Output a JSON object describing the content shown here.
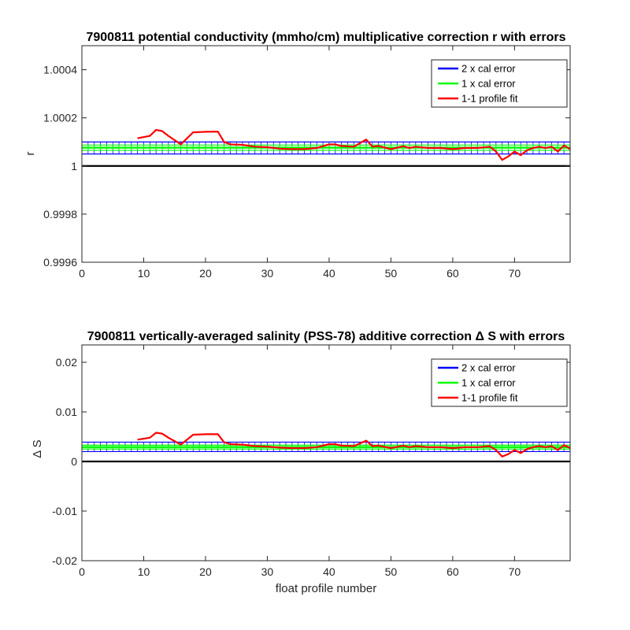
{
  "chart_data": [
    {
      "type": "line",
      "title": "7900811 potential conductivity (mmho/cm) multiplicative correction r with errors",
      "xlabel": "",
      "ylabel": "r",
      "xlim": [
        0,
        79
      ],
      "ylim": [
        0.9996,
        1.0005
      ],
      "xticks": [
        0,
        10,
        20,
        30,
        40,
        50,
        60,
        70
      ],
      "xtick_labels": [
        "0",
        "10",
        "20",
        "30",
        "40",
        "50",
        "60",
        "70"
      ],
      "yticks": [
        0.9996,
        0.9998,
        1,
        1.0002,
        1.0004
      ],
      "ytick_labels": [
        "0.9996",
        "0.9998",
        "1",
        "1.0002",
        "1.0004"
      ],
      "reference_line": 1,
      "legend_position": "top-right",
      "legend": [
        "2 x cal error",
        "1 x cal error",
        "1-1 profile fit"
      ],
      "bands": [
        {
          "name": "2 x cal error",
          "color": "#0000ff",
          "lower": 1.00005,
          "upper": 1.0001
        },
        {
          "name": "1 x cal error",
          "color": "#00ff00",
          "lower": 1.000065,
          "upper": 1.000087
        }
      ],
      "series": [
        {
          "name": "1-1 profile fit",
          "color": "#ff0000",
          "x": [
            9,
            11,
            12,
            13,
            14,
            16,
            18,
            20,
            22,
            23,
            24,
            26,
            28,
            30,
            32,
            34,
            36,
            38,
            40,
            41,
            42,
            44,
            46,
            47,
            48,
            50,
            52,
            53,
            54,
            56,
            58,
            60,
            62,
            64,
            66,
            67,
            68,
            69,
            70,
            71,
            72,
            73,
            74,
            75,
            76,
            77,
            78,
            79
          ],
          "y": [
            1.000115,
            1.000125,
            1.00015,
            1.000145,
            1.000125,
            1.00009,
            1.00014,
            1.000142,
            1.000143,
            1.0001,
            1.00009,
            1.000088,
            1.00008,
            1.000078,
            1.000072,
            1.00007,
            1.00007,
            1.000075,
            1.00009,
            1.00009,
            1.000083,
            1.00008,
            1.00011,
            1.00008,
            1.000083,
            1.00007,
            1.000082,
            1.000075,
            1.00008,
            1.000075,
            1.000075,
            1.00007,
            1.000075,
            1.000075,
            1.00008,
            1.00006,
            1.000025,
            1.00004,
            1.00006,
            1.000045,
            1.000065,
            1.000075,
            1.00008,
            1.000075,
            1.00008,
            1.00006,
            1.000085,
            1.00007
          ]
        }
      ]
    },
    {
      "type": "line",
      "title": "7900811 vertically-averaged salinity (PSS-78) additive correction Δ S with errors",
      "xlabel": "float profile number",
      "ylabel": "Δ S",
      "xlim": [
        0,
        79
      ],
      "ylim": [
        -0.02,
        0.0235
      ],
      "xticks": [
        0,
        10,
        20,
        30,
        40,
        50,
        60,
        70
      ],
      "xtick_labels": [
        "0",
        "10",
        "20",
        "30",
        "40",
        "50",
        "60",
        "70"
      ],
      "yticks": [
        -0.02,
        -0.01,
        0,
        0.01,
        0.02
      ],
      "ytick_labels": [
        "-0.02",
        "-0.01",
        "0",
        "0.01",
        "0.02"
      ],
      "reference_line": 0,
      "legend_position": "top-right",
      "legend": [
        "2 x cal error",
        "1 x cal error",
        "1-1 profile fit"
      ],
      "bands": [
        {
          "name": "2 x cal error",
          "color": "#0000ff",
          "lower": 0.002,
          "upper": 0.0039
        },
        {
          "name": "1 x cal error",
          "color": "#00ff00",
          "lower": 0.0025,
          "upper": 0.0033
        }
      ],
      "series": [
        {
          "name": "1-1 profile fit",
          "color": "#ff0000",
          "x": [
            9,
            11,
            12,
            13,
            14,
            16,
            18,
            20,
            22,
            23,
            24,
            26,
            28,
            30,
            32,
            34,
            36,
            38,
            40,
            41,
            42,
            44,
            46,
            47,
            48,
            50,
            52,
            53,
            54,
            56,
            58,
            60,
            62,
            64,
            66,
            67,
            68,
            69,
            70,
            71,
            72,
            73,
            74,
            75,
            76,
            77,
            78,
            79
          ],
          "y": [
            0.0044,
            0.0048,
            0.0058,
            0.0056,
            0.0048,
            0.0034,
            0.0054,
            0.0055,
            0.0055,
            0.0039,
            0.0035,
            0.0034,
            0.0031,
            0.003,
            0.0028,
            0.0027,
            0.0027,
            0.0029,
            0.0035,
            0.0035,
            0.0032,
            0.0031,
            0.0042,
            0.0031,
            0.0032,
            0.0027,
            0.0032,
            0.0029,
            0.0031,
            0.0029,
            0.0029,
            0.0027,
            0.0029,
            0.0029,
            0.0031,
            0.0023,
            0.001,
            0.0015,
            0.0023,
            0.0017,
            0.0025,
            0.0029,
            0.0031,
            0.0029,
            0.0031,
            0.0023,
            0.0033,
            0.0027
          ]
        }
      ]
    }
  ]
}
